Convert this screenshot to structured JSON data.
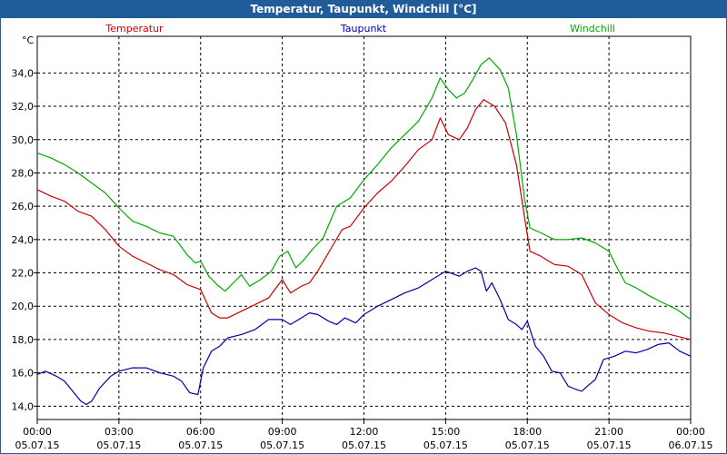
{
  "chart_data": {
    "type": "line",
    "title": "Temperatur, Taupunkt, Windchill [°C]",
    "ylabel": "°C",
    "xlabel": "",
    "ylim": [
      13.2,
      36.2
    ],
    "yticks": [
      "14,0",
      "16,0",
      "18,0",
      "20,0",
      "22,0",
      "24,0",
      "26,0",
      "28,0",
      "30,0",
      "32,0",
      "34,0"
    ],
    "ytick_values": [
      14,
      16,
      18,
      20,
      22,
      24,
      26,
      28,
      30,
      32,
      34
    ],
    "xlim": [
      0,
      24
    ],
    "xticks": [
      {
        "time": "00:00",
        "date": "05.07.15",
        "h": 0
      },
      {
        "time": "03:00",
        "date": "05.07.15",
        "h": 3
      },
      {
        "time": "06:00",
        "date": "05.07.15",
        "h": 6
      },
      {
        "time": "09:00",
        "date": "05.07.15",
        "h": 9
      },
      {
        "time": "12:00",
        "date": "05.07.15",
        "h": 12
      },
      {
        "time": "15:00",
        "date": "05.07.15",
        "h": 15
      },
      {
        "time": "18:00",
        "date": "05.07.15",
        "h": 18
      },
      {
        "time": "21:00",
        "date": "05.07.15",
        "h": 21
      },
      {
        "time": "00:00",
        "date": "06.07.15",
        "h": 24
      }
    ],
    "grid": true,
    "series": [
      {
        "name": "Temperatur",
        "color": "#cc0000",
        "points": [
          [
            0,
            27.0
          ],
          [
            0.5,
            26.6
          ],
          [
            1.0,
            26.3
          ],
          [
            1.5,
            25.7
          ],
          [
            2.0,
            25.4
          ],
          [
            2.5,
            24.6
          ],
          [
            3.0,
            23.6
          ],
          [
            3.5,
            23.0
          ],
          [
            4.0,
            22.6
          ],
          [
            4.5,
            22.2
          ],
          [
            5.0,
            21.9
          ],
          [
            5.5,
            21.3
          ],
          [
            6.0,
            21.0
          ],
          [
            6.4,
            19.6
          ],
          [
            6.7,
            19.3
          ],
          [
            7.0,
            19.3
          ],
          [
            7.5,
            19.7
          ],
          [
            8.0,
            20.1
          ],
          [
            8.5,
            20.5
          ],
          [
            9.0,
            21.6
          ],
          [
            9.3,
            20.8
          ],
          [
            9.7,
            21.2
          ],
          [
            10.0,
            21.4
          ],
          [
            10.3,
            22.1
          ],
          [
            10.8,
            23.5
          ],
          [
            11.2,
            24.6
          ],
          [
            11.5,
            24.8
          ],
          [
            12.0,
            25.9
          ],
          [
            12.5,
            26.8
          ],
          [
            13.0,
            27.5
          ],
          [
            13.5,
            28.4
          ],
          [
            14.0,
            29.4
          ],
          [
            14.5,
            30.0
          ],
          [
            14.8,
            31.3
          ],
          [
            15.1,
            30.3
          ],
          [
            15.5,
            30.0
          ],
          [
            15.8,
            30.7
          ],
          [
            16.1,
            31.8
          ],
          [
            16.4,
            32.4
          ],
          [
            16.8,
            32.0
          ],
          [
            17.2,
            31.0
          ],
          [
            17.6,
            28.5
          ],
          [
            17.9,
            25.3
          ],
          [
            18.1,
            23.3
          ],
          [
            18.5,
            23.0
          ],
          [
            19.0,
            22.5
          ],
          [
            19.5,
            22.4
          ],
          [
            20.0,
            21.9
          ],
          [
            20.5,
            20.2
          ],
          [
            21.0,
            19.5
          ],
          [
            21.5,
            19.0
          ],
          [
            22.0,
            18.7
          ],
          [
            22.5,
            18.5
          ],
          [
            23.0,
            18.4
          ],
          [
            23.5,
            18.2
          ],
          [
            24.0,
            18.0
          ]
        ]
      },
      {
        "name": "Taupunkt",
        "color": "#0000aa",
        "points": [
          [
            0,
            15.9
          ],
          [
            0.3,
            16.1
          ],
          [
            0.7,
            15.8
          ],
          [
            1.0,
            15.5
          ],
          [
            1.3,
            14.9
          ],
          [
            1.6,
            14.3
          ],
          [
            1.8,
            14.1
          ],
          [
            2.0,
            14.3
          ],
          [
            2.3,
            15.1
          ],
          [
            2.7,
            15.8
          ],
          [
            3.0,
            16.1
          ],
          [
            3.5,
            16.3
          ],
          [
            4.0,
            16.3
          ],
          [
            4.5,
            16.0
          ],
          [
            5.0,
            15.8
          ],
          [
            5.3,
            15.5
          ],
          [
            5.6,
            14.8
          ],
          [
            5.9,
            14.7
          ],
          [
            6.1,
            16.3
          ],
          [
            6.4,
            17.3
          ],
          [
            6.7,
            17.6
          ],
          [
            7.0,
            18.1
          ],
          [
            7.5,
            18.3
          ],
          [
            8.0,
            18.6
          ],
          [
            8.5,
            19.2
          ],
          [
            9.0,
            19.2
          ],
          [
            9.3,
            18.9
          ],
          [
            9.7,
            19.3
          ],
          [
            10.0,
            19.6
          ],
          [
            10.3,
            19.5
          ],
          [
            10.7,
            19.1
          ],
          [
            11.0,
            18.9
          ],
          [
            11.3,
            19.3
          ],
          [
            11.7,
            19.0
          ],
          [
            12.0,
            19.5
          ],
          [
            12.5,
            20.0
          ],
          [
            13.0,
            20.4
          ],
          [
            13.5,
            20.8
          ],
          [
            14.0,
            21.1
          ],
          [
            14.5,
            21.6
          ],
          [
            15.0,
            22.1
          ],
          [
            15.5,
            21.8
          ],
          [
            15.8,
            22.1
          ],
          [
            16.1,
            22.3
          ],
          [
            16.3,
            22.1
          ],
          [
            16.5,
            20.9
          ],
          [
            16.7,
            21.4
          ],
          [
            17.0,
            20.4
          ],
          [
            17.3,
            19.2
          ],
          [
            17.6,
            18.9
          ],
          [
            17.8,
            18.6
          ],
          [
            18.0,
            19.1
          ],
          [
            18.3,
            17.6
          ],
          [
            18.6,
            17.0
          ],
          [
            18.9,
            16.1
          ],
          [
            19.2,
            16.0
          ],
          [
            19.5,
            15.2
          ],
          [
            19.8,
            15.0
          ],
          [
            20.0,
            14.9
          ],
          [
            20.2,
            15.2
          ],
          [
            20.5,
            15.6
          ],
          [
            20.8,
            16.8
          ],
          [
            21.2,
            17.0
          ],
          [
            21.6,
            17.3
          ],
          [
            22.0,
            17.2
          ],
          [
            22.4,
            17.4
          ],
          [
            22.8,
            17.7
          ],
          [
            23.2,
            17.8
          ],
          [
            23.6,
            17.3
          ],
          [
            24.0,
            17.0
          ]
        ]
      },
      {
        "name": "Windchill",
        "color": "#00aa00",
        "points": [
          [
            0,
            29.2
          ],
          [
            0.5,
            28.9
          ],
          [
            1.0,
            28.5
          ],
          [
            1.5,
            28.0
          ],
          [
            2.0,
            27.4
          ],
          [
            2.5,
            26.8
          ],
          [
            3.0,
            25.9
          ],
          [
            3.5,
            25.1
          ],
          [
            4.0,
            24.8
          ],
          [
            4.5,
            24.4
          ],
          [
            5.0,
            24.2
          ],
          [
            5.5,
            23.1
          ],
          [
            5.8,
            22.6
          ],
          [
            6.0,
            22.7
          ],
          [
            6.3,
            21.8
          ],
          [
            6.6,
            21.3
          ],
          [
            6.9,
            20.9
          ],
          [
            7.2,
            21.4
          ],
          [
            7.5,
            21.9
          ],
          [
            7.8,
            21.2
          ],
          [
            8.2,
            21.6
          ],
          [
            8.6,
            22.1
          ],
          [
            8.9,
            23.0
          ],
          [
            9.2,
            23.3
          ],
          [
            9.5,
            22.3
          ],
          [
            9.8,
            22.8
          ],
          [
            10.1,
            23.4
          ],
          [
            10.5,
            24.1
          ],
          [
            11.0,
            26.0
          ],
          [
            11.5,
            26.5
          ],
          [
            12.0,
            27.6
          ],
          [
            12.5,
            28.5
          ],
          [
            13.0,
            29.5
          ],
          [
            13.5,
            30.3
          ],
          [
            14.0,
            31.1
          ],
          [
            14.5,
            32.5
          ],
          [
            14.8,
            33.7
          ],
          [
            15.1,
            33.0
          ],
          [
            15.4,
            32.5
          ],
          [
            15.7,
            32.8
          ],
          [
            16.0,
            33.6
          ],
          [
            16.3,
            34.5
          ],
          [
            16.6,
            34.9
          ],
          [
            17.0,
            34.2
          ],
          [
            17.3,
            33.1
          ],
          [
            17.6,
            30.3
          ],
          [
            17.9,
            26.4
          ],
          [
            18.1,
            24.7
          ],
          [
            18.5,
            24.4
          ],
          [
            19.0,
            24.0
          ],
          [
            19.5,
            24.0
          ],
          [
            20.0,
            24.1
          ],
          [
            20.5,
            23.8
          ],
          [
            21.0,
            23.3
          ],
          [
            21.3,
            22.3
          ],
          [
            21.6,
            21.4
          ],
          [
            22.0,
            21.1
          ],
          [
            22.5,
            20.6
          ],
          [
            23.0,
            20.2
          ],
          [
            23.5,
            19.8
          ],
          [
            24.0,
            19.2
          ]
        ]
      }
    ]
  }
}
